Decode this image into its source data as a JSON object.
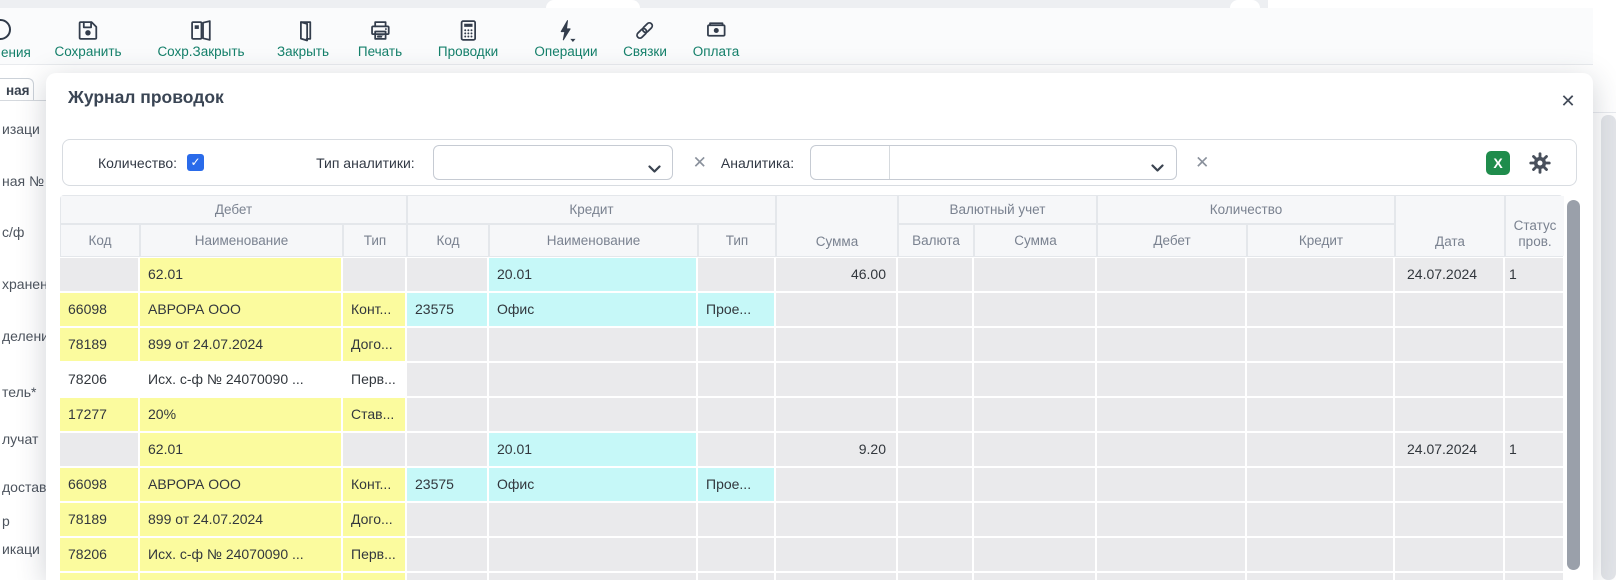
{
  "colors": {
    "toolbar_label_green": "#15806b",
    "excel_green": "#1f8c4c",
    "checkbox_blue": "#2a6bea",
    "cell_yellow": "#fbfb9e",
    "cell_cyan": "#c6f8f8",
    "cell_gray": "#eaeaec"
  },
  "background": {
    "toolbar": {
      "partial_label": "ения",
      "buttons": [
        {
          "name": "save",
          "label": "Сохранить",
          "icon": "save-icon"
        },
        {
          "name": "save-close",
          "label": "Сохр.Закрыть",
          "icon": "save-close-icon"
        },
        {
          "name": "close",
          "label": "Закрыть",
          "icon": "door-icon"
        },
        {
          "name": "print",
          "label": "Печать",
          "icon": "printer-icon"
        },
        {
          "name": "postings",
          "label": "Проводки",
          "icon": "calculator-icon"
        },
        {
          "name": "operations",
          "label": "Операции",
          "icon": "lightning-icon"
        },
        {
          "name": "links",
          "label": "Связки",
          "icon": "chain-link-icon"
        },
        {
          "name": "payment",
          "label": "Оплата",
          "icon": "banknote-icon"
        }
      ]
    },
    "tab_partial_label": "ная",
    "form_partial_labels": [
      "изаци",
      "ная №",
      "с/ф",
      "хранен",
      "делени",
      "тель*",
      "лучат",
      "доставк",
      "р",
      "икаци"
    ]
  },
  "modal": {
    "title": "Журнал проводок",
    "close_glyph": "✕",
    "filters": {
      "quantity_label": "Количество:",
      "quantity_checked": true,
      "check_glyph": "✓",
      "analytics_type_label": "Тип аналитики:",
      "analytics_type_value": "",
      "analytics_label": "Аналитика:",
      "analytics_code_value": "",
      "analytics_value": "",
      "clear_glyph": "✕",
      "excel_button_label": "X"
    },
    "table": {
      "header_cells": [
        {
          "label": "Дебет",
          "col": 1,
          "span": 3,
          "row": "top"
        },
        {
          "label": "Кредит",
          "col": 4,
          "span": 3,
          "row": "top"
        },
        {
          "label": "Валютный учет",
          "col": 8,
          "span": 2,
          "row": "top"
        },
        {
          "label": "Количество",
          "col": 10,
          "span": 2,
          "row": "top"
        },
        {
          "label": "Сумма",
          "col": 7,
          "span": 1,
          "row": "full"
        },
        {
          "label": "Дата",
          "col": 12,
          "span": 1,
          "row": "full"
        },
        {
          "label": "Статус пров.",
          "col": 13,
          "span": 1,
          "row": "full"
        },
        {
          "label": "Код",
          "col": 1,
          "span": 1,
          "row": "sub"
        },
        {
          "label": "Наименование",
          "col": 2,
          "span": 1,
          "row": "sub"
        },
        {
          "label": "Тип",
          "col": 3,
          "span": 1,
          "row": "sub"
        },
        {
          "label": "Код",
          "col": 4,
          "span": 1,
          "row": "sub"
        },
        {
          "label": "Наименование",
          "col": 5,
          "span": 1,
          "row": "sub"
        },
        {
          "label": "Тип",
          "col": 6,
          "span": 1,
          "row": "sub"
        },
        {
          "label": "Валюта",
          "col": 8,
          "span": 1,
          "row": "sub"
        },
        {
          "label": "Сумма",
          "col": 9,
          "span": 1,
          "row": "sub"
        },
        {
          "label": "Дебет",
          "col": 10,
          "span": 1,
          "row": "sub"
        },
        {
          "label": "Кредит",
          "col": 11,
          "span": 1,
          "row": "sub"
        }
      ],
      "rows": [
        [
          [
            "g",
            ""
          ],
          [
            "y",
            "62.01"
          ],
          [
            "g",
            ""
          ],
          [
            "g",
            ""
          ],
          [
            "c",
            "20.01"
          ],
          [
            "g",
            ""
          ],
          [
            "g",
            "46.00",
            "r"
          ],
          [
            "g",
            ""
          ],
          [
            "g",
            ""
          ],
          [
            "g",
            ""
          ],
          [
            "g",
            ""
          ],
          [
            "g",
            "24.07.2024"
          ],
          [
            "g",
            "1"
          ]
        ],
        [
          [
            "y",
            "66098"
          ],
          [
            "y",
            "АВРОРА ООО"
          ],
          [
            "y",
            "Конт..."
          ],
          [
            "c",
            "23575"
          ],
          [
            "c",
            "Офис"
          ],
          [
            "c",
            "Прое..."
          ],
          [
            "g",
            ""
          ],
          [
            "g",
            ""
          ],
          [
            "g",
            ""
          ],
          [
            "g",
            ""
          ],
          [
            "g",
            ""
          ],
          [
            "g",
            ""
          ],
          [
            "g",
            ""
          ]
        ],
        [
          [
            "y",
            "78189"
          ],
          [
            "y",
            "899 от 24.07.2024"
          ],
          [
            "y",
            "Дого..."
          ],
          [
            "g",
            ""
          ],
          [
            "g",
            ""
          ],
          [
            "g",
            ""
          ],
          [
            "g",
            ""
          ],
          [
            "g",
            ""
          ],
          [
            "g",
            ""
          ],
          [
            "g",
            ""
          ],
          [
            "g",
            ""
          ],
          [
            "g",
            ""
          ],
          [
            "g",
            ""
          ]
        ],
        [
          [
            "w",
            "78206"
          ],
          [
            "w",
            "Исх. с-ф № 24070090 ..."
          ],
          [
            "w",
            "Перв..."
          ],
          [
            "g",
            ""
          ],
          [
            "g",
            ""
          ],
          [
            "g",
            ""
          ],
          [
            "g",
            ""
          ],
          [
            "g",
            ""
          ],
          [
            "g",
            ""
          ],
          [
            "g",
            ""
          ],
          [
            "g",
            ""
          ],
          [
            "g",
            ""
          ],
          [
            "g",
            ""
          ]
        ],
        [
          [
            "y",
            "17277"
          ],
          [
            "y",
            "20%"
          ],
          [
            "y",
            "Став..."
          ],
          [
            "g",
            ""
          ],
          [
            "g",
            ""
          ],
          [
            "g",
            ""
          ],
          [
            "g",
            ""
          ],
          [
            "g",
            ""
          ],
          [
            "g",
            ""
          ],
          [
            "g",
            ""
          ],
          [
            "g",
            ""
          ],
          [
            "g",
            ""
          ],
          [
            "g",
            ""
          ]
        ],
        [
          [
            "g",
            ""
          ],
          [
            "y",
            "62.01"
          ],
          [
            "g",
            ""
          ],
          [
            "g",
            ""
          ],
          [
            "c",
            "20.01"
          ],
          [
            "g",
            ""
          ],
          [
            "g",
            "9.20",
            "r"
          ],
          [
            "g",
            ""
          ],
          [
            "g",
            ""
          ],
          [
            "g",
            ""
          ],
          [
            "g",
            ""
          ],
          [
            "g",
            "24.07.2024"
          ],
          [
            "g",
            "1"
          ]
        ],
        [
          [
            "y",
            "66098"
          ],
          [
            "y",
            "АВРОРА ООО"
          ],
          [
            "y",
            "Конт..."
          ],
          [
            "c",
            "23575"
          ],
          [
            "c",
            "Офис"
          ],
          [
            "c",
            "Прое..."
          ],
          [
            "g",
            ""
          ],
          [
            "g",
            ""
          ],
          [
            "g",
            ""
          ],
          [
            "g",
            ""
          ],
          [
            "g",
            ""
          ],
          [
            "g",
            ""
          ],
          [
            "g",
            ""
          ]
        ],
        [
          [
            "y",
            "78189"
          ],
          [
            "y",
            "899 от 24.07.2024"
          ],
          [
            "y",
            "Дого..."
          ],
          [
            "g",
            ""
          ],
          [
            "g",
            ""
          ],
          [
            "g",
            ""
          ],
          [
            "g",
            ""
          ],
          [
            "g",
            ""
          ],
          [
            "g",
            ""
          ],
          [
            "g",
            ""
          ],
          [
            "g",
            ""
          ],
          [
            "g",
            ""
          ],
          [
            "g",
            ""
          ]
        ],
        [
          [
            "y",
            "78206"
          ],
          [
            "y",
            "Исх. с-ф № 24070090 ..."
          ],
          [
            "y",
            "Перв..."
          ],
          [
            "g",
            ""
          ],
          [
            "g",
            ""
          ],
          [
            "g",
            ""
          ],
          [
            "g",
            ""
          ],
          [
            "g",
            ""
          ],
          [
            "g",
            ""
          ],
          [
            "g",
            ""
          ],
          [
            "g",
            ""
          ],
          [
            "g",
            ""
          ],
          [
            "g",
            ""
          ]
        ],
        [
          [
            "y",
            ""
          ],
          [
            "y",
            ""
          ],
          [
            "y",
            ""
          ],
          [
            "g",
            ""
          ],
          [
            "g",
            ""
          ],
          [
            "g",
            ""
          ],
          [
            "g",
            ""
          ],
          [
            "g",
            ""
          ],
          [
            "g",
            ""
          ],
          [
            "g",
            ""
          ],
          [
            "g",
            ""
          ],
          [
            "g",
            ""
          ],
          [
            "g",
            ""
          ]
        ]
      ]
    }
  }
}
